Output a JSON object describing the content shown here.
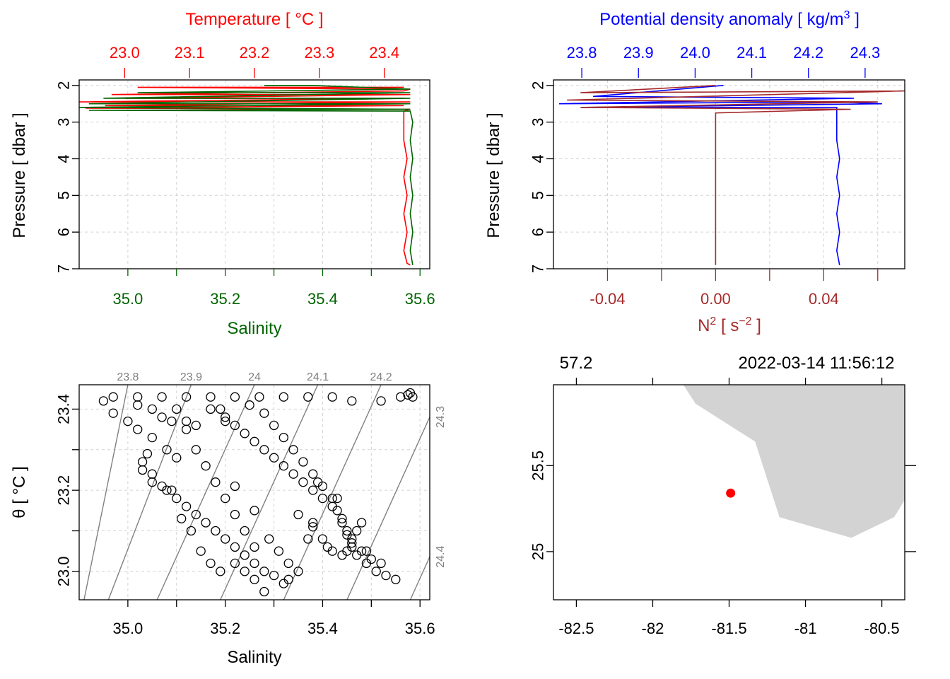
{
  "colors": {
    "temperature": "#ff0000",
    "salinity": "#006400",
    "density": "#0000ff",
    "n2": "#a52a2a",
    "isopycnal": "#808080",
    "land": "#d3d3d3",
    "station": "#ff0000",
    "grid": "#d3d3d3"
  },
  "panels": {
    "profile_ts": {
      "top_axis_title": "Temperature [ °C ]",
      "top_ticks": [
        "23.0",
        "23.1",
        "23.2",
        "23.3",
        "23.4"
      ],
      "bottom_axis_title": "Salinity",
      "bottom_ticks": [
        "35.0",
        "35.2",
        "35.4",
        "35.6"
      ],
      "left_axis_title": "Pressure [ dbar ]",
      "left_ticks": [
        "2",
        "3",
        "4",
        "5",
        "6",
        "7"
      ]
    },
    "profile_density": {
      "top_axis_title_main": "Potential density anomaly [ kg/m",
      "top_axis_title_sup": "3",
      "top_axis_title_end": " ]",
      "top_ticks": [
        "23.8",
        "23.9",
        "24.0",
        "24.1",
        "24.2",
        "24.3"
      ],
      "bottom_axis_title_main": "N",
      "bottom_axis_title_sup1": "2",
      "bottom_axis_title_mid": " [ s",
      "bottom_axis_title_sup2": "−2",
      "bottom_axis_title_end": " ]",
      "bottom_ticks": [
        "-0.04",
        "0.00",
        "0.04"
      ],
      "left_axis_title": "Pressure [ dbar ]",
      "left_ticks": [
        "2",
        "3",
        "4",
        "5",
        "6",
        "7"
      ]
    },
    "ts_diagram": {
      "bottom_axis_title": "Salinity",
      "bottom_ticks": [
        "35.0",
        "35.2",
        "35.4",
        "35.6"
      ],
      "left_axis_title": "θ [ °C ]",
      "left_ticks": [
        "23.0",
        "23.2",
        "23.4"
      ],
      "isopycnal_labels": [
        "23.8",
        "23.9",
        "24",
        "24.1",
        "24.2",
        "24.3",
        "24.4"
      ]
    },
    "map": {
      "top_left_label": "57.2",
      "top_right_label": "2022-03-14 11:56:12",
      "bottom_ticks": [
        "-82.5",
        "-82",
        "-81.5",
        "-81",
        "-80.5"
      ],
      "left_ticks": [
        "25",
        "25.5"
      ]
    }
  },
  "chart_data": [
    {
      "type": "line",
      "panel": "profile_ts",
      "y_axis": {
        "label": "Pressure [ dbar ]",
        "range": [
          7.0,
          1.85
        ],
        "reversed": true
      },
      "series": [
        {
          "name": "Temperature",
          "axis": "top",
          "xlim": [
            22.93,
            23.47
          ],
          "points": [
            [
              23.43,
              2.05
            ],
            [
              23.02,
              2.05
            ],
            [
              23.44,
              2.1
            ],
            [
              23.43,
              2.15
            ],
            [
              22.98,
              2.25
            ],
            [
              23.44,
              2.25
            ],
            [
              23.0,
              2.35
            ],
            [
              23.43,
              2.35
            ],
            [
              22.93,
              2.45
            ],
            [
              23.44,
              2.45
            ],
            [
              22.97,
              2.55
            ],
            [
              23.43,
              2.55
            ],
            [
              22.94,
              2.62
            ],
            [
              23.44,
              2.65
            ],
            [
              23.43,
              2.7
            ],
            [
              23.43,
              3.0
            ],
            [
              23.43,
              3.5
            ],
            [
              23.435,
              4.0
            ],
            [
              23.43,
              4.5
            ],
            [
              23.435,
              5.0
            ],
            [
              23.43,
              5.5
            ],
            [
              23.435,
              6.0
            ],
            [
              23.43,
              6.5
            ],
            [
              23.435,
              6.85
            ],
            [
              23.44,
              6.9
            ]
          ]
        },
        {
          "name": "Salinity",
          "axis": "bottom",
          "xlim": [
            34.9,
            35.62
          ],
          "points": [
            [
              35.28,
              2.0
            ],
            [
              35.38,
              2.0
            ],
            [
              35.58,
              2.1
            ],
            [
              35.02,
              2.2
            ],
            [
              35.58,
              2.2
            ],
            [
              34.95,
              2.35
            ],
            [
              35.58,
              2.35
            ],
            [
              34.92,
              2.5
            ],
            [
              35.58,
              2.5
            ],
            [
              34.9,
              2.6
            ],
            [
              35.58,
              2.65
            ],
            [
              34.92,
              2.68
            ],
            [
              35.58,
              2.7
            ],
            [
              35.585,
              3.0
            ],
            [
              35.58,
              3.5
            ],
            [
              35.585,
              4.0
            ],
            [
              35.58,
              4.5
            ],
            [
              35.585,
              5.0
            ],
            [
              35.58,
              5.5
            ],
            [
              35.585,
              6.0
            ],
            [
              35.58,
              6.5
            ],
            [
              35.585,
              6.9
            ]
          ]
        }
      ]
    },
    {
      "type": "line",
      "panel": "profile_density",
      "y_axis": {
        "label": "Pressure [ dbar ]",
        "range": [
          7.0,
          1.85
        ],
        "reversed": true
      },
      "series": [
        {
          "name": "Potential density anomaly",
          "axis": "top",
          "xlim": [
            23.75,
            24.37
          ],
          "points": [
            [
              24.05,
              2.0
            ],
            [
              23.82,
              2.3
            ],
            [
              24.28,
              2.35
            ],
            [
              23.76,
              2.5
            ],
            [
              24.25,
              2.45
            ],
            [
              24.33,
              2.5
            ],
            [
              23.8,
              2.6
            ],
            [
              24.25,
              2.6
            ],
            [
              24.25,
              2.7
            ],
            [
              24.25,
              3.0
            ],
            [
              24.25,
              3.5
            ],
            [
              24.255,
              4.0
            ],
            [
              24.25,
              4.5
            ],
            [
              24.255,
              5.0
            ],
            [
              24.25,
              5.5
            ],
            [
              24.255,
              6.0
            ],
            [
              24.25,
              6.5
            ],
            [
              24.255,
              6.9
            ]
          ]
        },
        {
          "name": "N2",
          "axis": "bottom",
          "xlim": [
            -0.06,
            0.07
          ],
          "points": [
            [
              0.0,
              2.0
            ],
            [
              -0.05,
              2.2
            ],
            [
              0.07,
              2.15
            ],
            [
              -0.055,
              2.4
            ],
            [
              0.06,
              2.45
            ],
            [
              -0.05,
              2.6
            ],
            [
              0.05,
              2.65
            ],
            [
              0.0,
              2.75
            ],
            [
              0.0,
              3.0
            ],
            [
              0.0,
              4.0
            ],
            [
              0.0,
              5.0
            ],
            [
              0.0,
              6.0
            ],
            [
              0.0,
              6.9
            ]
          ]
        }
      ]
    },
    {
      "type": "scatter",
      "panel": "ts_diagram",
      "xlabel": "Salinity",
      "ylabel": "θ [ °C ]",
      "xlim": [
        34.9,
        35.62
      ],
      "ylim": [
        22.93,
        23.46
      ],
      "series": [
        {
          "points": [
            [
              34.95,
              23.42
            ],
            [
              34.97,
              23.39
            ],
            [
              35.0,
              23.37
            ],
            [
              35.02,
              23.35
            ],
            [
              35.05,
              23.33
            ],
            [
              35.08,
              23.3
            ],
            [
              35.1,
              23.28
            ],
            [
              35.03,
              23.25
            ],
            [
              35.05,
              23.22
            ],
            [
              35.08,
              23.2
            ],
            [
              35.1,
              23.18
            ],
            [
              35.12,
              23.16
            ],
            [
              35.14,
              23.14
            ],
            [
              35.16,
              23.12
            ],
            [
              35.18,
              23.1
            ],
            [
              35.2,
              23.08
            ],
            [
              35.22,
              23.06
            ],
            [
              35.24,
              23.04
            ],
            [
              35.26,
              23.02
            ],
            [
              35.28,
              23.0
            ],
            [
              35.3,
              22.99
            ],
            [
              35.33,
              22.98
            ],
            [
              35.32,
              22.97
            ],
            [
              35.28,
              22.95
            ]
          ]
        },
        {
          "points": [
            [
              35.1,
              23.4
            ],
            [
              35.12,
              23.35
            ],
            [
              35.14,
              23.3
            ],
            [
              35.16,
              23.26
            ],
            [
              35.18,
              23.22
            ],
            [
              35.2,
              23.18
            ],
            [
              35.22,
              23.14
            ],
            [
              35.24,
              23.1
            ],
            [
              35.26,
              23.06
            ],
            [
              35.22,
              23.02
            ],
            [
              35.24,
              23.0
            ],
            [
              35.26,
              22.98
            ]
          ]
        },
        {
          "points": [
            [
              35.17,
              23.4
            ],
            [
              35.2,
              23.38
            ],
            [
              35.22,
              23.36
            ],
            [
              35.24,
              23.34
            ],
            [
              35.26,
              23.32
            ],
            [
              35.28,
              23.3
            ],
            [
              35.3,
              23.28
            ],
            [
              35.32,
              23.26
            ],
            [
              35.34,
              23.24
            ],
            [
              35.36,
              23.22
            ],
            [
              35.38,
              23.2
            ],
            [
              35.4,
              23.18
            ],
            [
              35.42,
              23.16
            ],
            [
              35.44,
              23.13
            ],
            [
              35.45,
              23.1
            ],
            [
              35.46,
              23.07
            ],
            [
              35.48,
              23.05
            ],
            [
              35.5,
              23.03
            ],
            [
              35.52,
              23.02
            ]
          ]
        },
        {
          "points": [
            [
              35.25,
              23.41
            ],
            [
              35.28,
              23.39
            ],
            [
              35.3,
              23.36
            ],
            [
              35.32,
              23.33
            ],
            [
              35.34,
              23.3
            ],
            [
              35.36,
              23.27
            ],
            [
              35.38,
              23.24
            ],
            [
              35.4,
              23.21
            ],
            [
              35.42,
              23.18
            ],
            [
              35.43,
              23.15
            ],
            [
              35.44,
              23.12
            ],
            [
              35.45,
              23.09
            ],
            [
              35.46,
              23.06
            ],
            [
              35.47,
              23.04
            ],
            [
              35.49,
              23.02
            ],
            [
              35.51,
              23.0
            ],
            [
              35.53,
              22.99
            ],
            [
              35.55,
              22.98
            ]
          ]
        },
        {
          "points": [
            [
              34.97,
              23.43
            ],
            [
              35.02,
              23.43
            ],
            [
              35.07,
              23.43
            ],
            [
              35.12,
              23.43
            ],
            [
              35.17,
              23.43
            ],
            [
              35.22,
              23.43
            ],
            [
              35.27,
              23.43
            ],
            [
              35.32,
              23.43
            ],
            [
              35.37,
              23.43
            ],
            [
              35.42,
              23.43
            ],
            [
              35.46,
              23.42
            ],
            [
              35.52,
              23.42
            ],
            [
              35.56,
              23.43
            ],
            [
              35.575,
              23.435
            ],
            [
              35.58,
              23.44
            ],
            [
              35.585,
              23.43
            ]
          ]
        },
        {
          "points": [
            [
              35.02,
              23.41
            ],
            [
              35.05,
              23.4
            ],
            [
              35.07,
              23.38
            ],
            [
              35.09,
              23.37
            ],
            [
              35.12,
              23.37
            ],
            [
              35.14,
              23.36
            ],
            [
              35.19,
              23.4
            ],
            [
              35.2,
              23.37
            ]
          ]
        },
        {
          "points": [
            [
              35.04,
              23.29
            ],
            [
              35.03,
              23.27
            ],
            [
              35.05,
              23.24
            ],
            [
              35.07,
              23.21
            ],
            [
              35.09,
              23.2
            ],
            [
              35.11,
              23.13
            ],
            [
              35.13,
              23.1
            ],
            [
              35.15,
              23.05
            ],
            [
              35.17,
              23.02
            ],
            [
              35.19,
              23.0
            ]
          ]
        },
        {
          "points": [
            [
              35.35,
              23.14
            ],
            [
              35.38,
              23.11
            ],
            [
              35.4,
              23.08
            ],
            [
              35.41,
              23.06
            ],
            [
              35.42,
              23.05
            ],
            [
              35.44,
              23.04
            ],
            [
              35.45,
              23.05
            ],
            [
              35.46,
              23.08
            ],
            [
              35.47,
              23.1
            ],
            [
              35.48,
              23.12
            ],
            [
              35.49,
              23.05
            ],
            [
              35.43,
              23.18
            ],
            [
              35.39,
              23.22
            ]
          ]
        },
        {
          "points": [
            [
              35.22,
              23.21
            ],
            [
              35.26,
              23.15
            ],
            [
              35.29,
              23.08
            ],
            [
              35.31,
              23.05
            ],
            [
              35.33,
              23.02
            ],
            [
              35.35,
              23.0
            ],
            [
              35.37,
              23.08
            ],
            [
              35.38,
              23.12
            ]
          ]
        }
      ],
      "isopycnals": [
        {
          "level": "23.8",
          "s0": 34.91,
          "s1": 35.0
        },
        {
          "level": "23.9",
          "s0": 34.96,
          "s1": 35.13
        },
        {
          "level": "24",
          "s0": 35.06,
          "s1": 35.26
        },
        {
          "level": "24.1",
          "s0": 35.19,
          "s1": 35.39
        },
        {
          "level": "24.2",
          "s0": 35.32,
          "s1": 35.52
        },
        {
          "level": "24.3",
          "s0": 35.45,
          "s1": 35.65
        },
        {
          "level": "24.4",
          "s0": 35.58,
          "s1": 35.78
        }
      ]
    },
    {
      "type": "map",
      "panel": "map",
      "xlim": [
        -82.65,
        -80.35
      ],
      "ylim": [
        24.72,
        25.97
      ],
      "station": {
        "lon": -81.49,
        "lat": 25.34
      },
      "land": [
        [
          -81.8,
          25.97
        ],
        [
          -81.72,
          25.86
        ],
        [
          -81.33,
          25.64
        ],
        [
          -81.17,
          25.2
        ],
        [
          -80.7,
          25.08
        ],
        [
          -80.42,
          25.2
        ],
        [
          -80.35,
          25.3
        ],
        [
          -80.35,
          25.97
        ]
      ]
    }
  ]
}
